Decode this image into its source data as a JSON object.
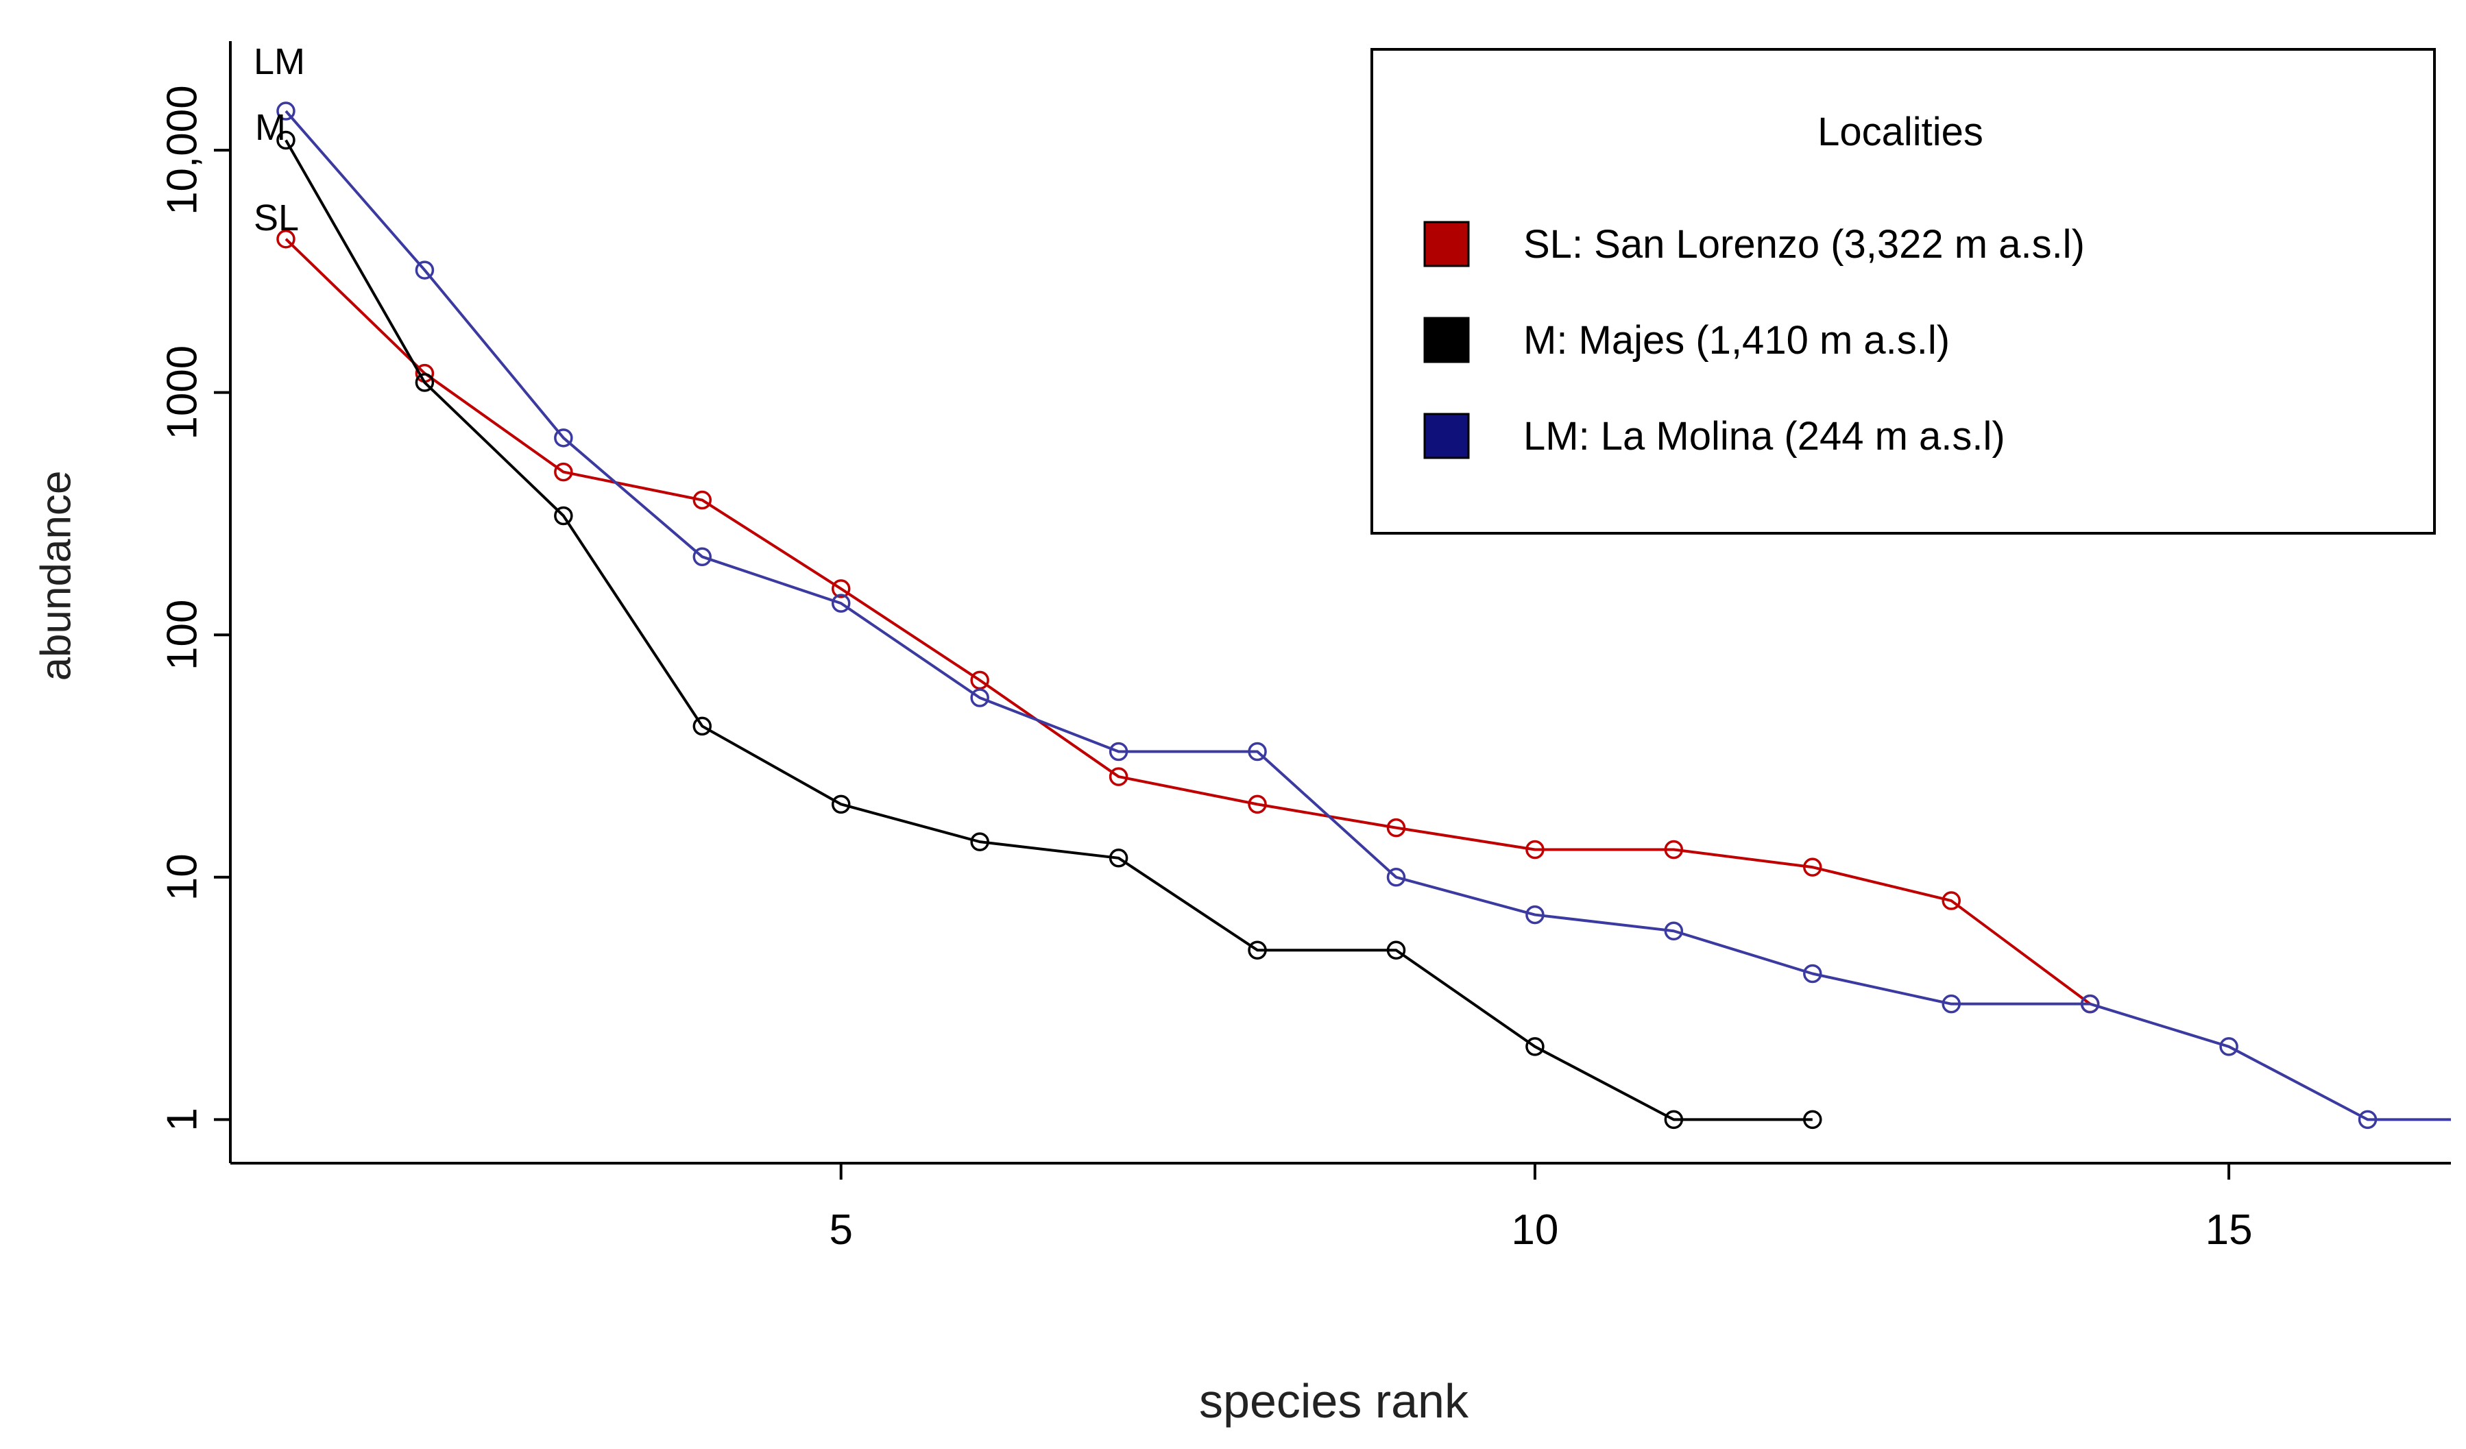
{
  "chart_data": {
    "type": "line",
    "title": "",
    "xlabel": "species rank",
    "ylabel": "abundance",
    "x_scale": "linear",
    "y_scale": "log",
    "xlim": [
      0.6,
      16.6
    ],
    "ylim_log10": [
      -0.18,
      4.45
    ],
    "x_ticks": [
      5,
      10,
      15
    ],
    "x_tick_labels": [
      "5",
      "10",
      "15"
    ],
    "y_ticks": [
      1,
      10,
      100,
      1000,
      10000
    ],
    "y_tick_labels": [
      "1",
      "10",
      "100",
      "1000",
      "10,000"
    ],
    "legend": {
      "title": "Localities",
      "placement": "top-right",
      "entries": [
        {
          "key": "SL",
          "label": "SL: San Lorenzo (3,322 m a.s.l)",
          "color": "#b00000"
        },
        {
          "key": "M",
          "label": "M: Majes (1,410 m a.s.l)",
          "color": "#000000"
        },
        {
          "key": "LM",
          "label": "LM: La Molina (244 m a.s.l)",
          "color": "#10107a"
        }
      ]
    },
    "series": [
      {
        "name": "SL",
        "start_label": "SL",
        "color": "#c00000",
        "x": [
          1,
          2,
          3,
          4,
          5,
          6,
          7,
          8,
          9,
          10,
          11,
          12,
          13,
          14
        ],
        "values": [
          4300,
          1200,
          470,
          360,
          155,
          65,
          26,
          20,
          16,
          13,
          13,
          11,
          8,
          3
        ]
      },
      {
        "name": "M",
        "start_label": "M",
        "color": "#000000",
        "x": [
          1,
          2,
          3,
          4,
          5,
          6,
          7,
          8,
          9,
          10,
          11,
          12
        ],
        "values": [
          11000,
          1100,
          310,
          42,
          20,
          14,
          12,
          5,
          5,
          2,
          1,
          1
        ]
      },
      {
        "name": "LM",
        "start_label": "LM",
        "color": "#3a3aa0",
        "x": [
          1,
          2,
          3,
          4,
          5,
          6,
          7,
          8,
          9,
          10,
          11,
          12,
          13,
          14,
          15,
          16
        ],
        "values": [
          14500,
          3200,
          650,
          210,
          135,
          55,
          33,
          33,
          10,
          7,
          6,
          4,
          3,
          3,
          2,
          1
        ],
        "extends_past_axis": true
      }
    ]
  }
}
